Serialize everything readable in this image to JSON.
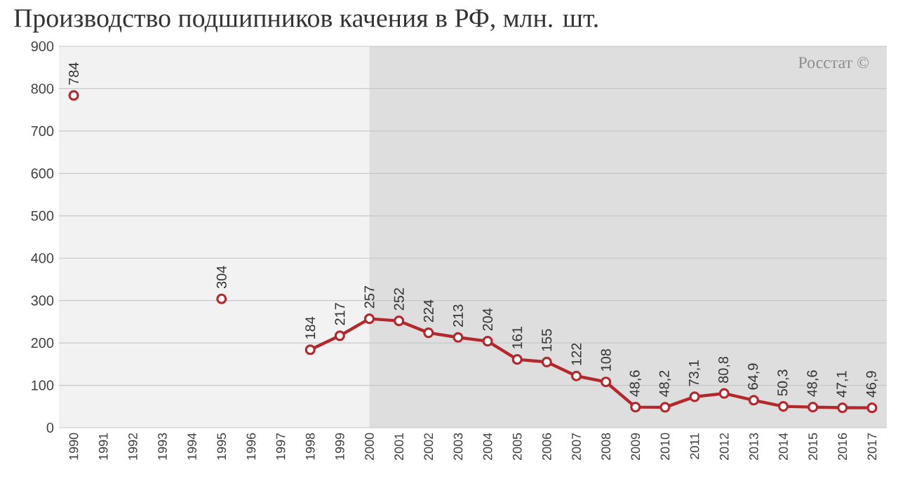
{
  "chart_data": {
    "type": "line",
    "title": "Производство подшипников качения в РФ, млн. шт.",
    "categories": [
      "1990",
      "1991",
      "1992",
      "1993",
      "1994",
      "1995",
      "1996",
      "1997",
      "1998",
      "1999",
      "2000",
      "2001",
      "2002",
      "2003",
      "2004",
      "2005",
      "2006",
      "2007",
      "2008",
      "2009",
      "2010",
      "2011",
      "2012",
      "2013",
      "2014",
      "2015",
      "2016",
      "2017"
    ],
    "series": [
      {
        "color": "#b3282d",
        "values": [
          784,
          null,
          null,
          null,
          null,
          304,
          null,
          null,
          184,
          217,
          257,
          252,
          224,
          213,
          204,
          161,
          155,
          122,
          108,
          48.6,
          48.2,
          73.1,
          80.8,
          64.9,
          50.3,
          48.6,
          47.1,
          46.9
        ],
        "value_labels": [
          "784",
          null,
          null,
          null,
          null,
          "304",
          null,
          null,
          "184",
          "217",
          "257",
          "252",
          "224",
          "213",
          "204",
          "161",
          "155",
          "122",
          "108",
          "48,6",
          "48,2",
          "73,1",
          "80,8",
          "64,9",
          "50,3",
          "48,6",
          "47,1",
          "46,9"
        ]
      }
    ],
    "ylim": [
      0,
      900
    ],
    "yticks": [
      0,
      100,
      200,
      300,
      400,
      500,
      600,
      700,
      800,
      900
    ],
    "grid": "y",
    "marker": "circle",
    "line_style": "solid",
    "bands": [
      {
        "axis": "x",
        "from": "2000",
        "to": "2017",
        "color": "#dedede"
      }
    ],
    "annotations": [
      "Росстат ©"
    ]
  }
}
